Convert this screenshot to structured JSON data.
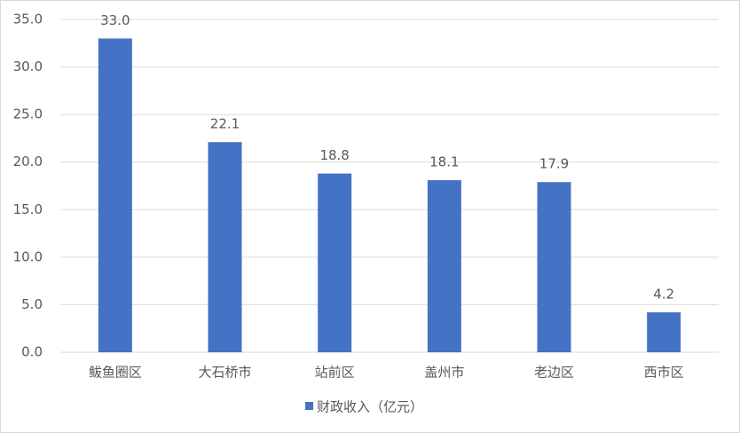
{
  "chart_data": {
    "type": "bar",
    "categories": [
      "鲅鱼圈区",
      "大石桥市",
      "站前区",
      "盖州市",
      "老边区",
      "西市区"
    ],
    "series": [
      {
        "name": "财政收入（亿元）",
        "color": "#4472c4",
        "values": [
          33.0,
          22.1,
          18.8,
          18.1,
          17.9,
          4.2
        ],
        "value_labels": [
          "33.0",
          "22.1",
          "18.8",
          "18.1",
          "17.9",
          "4.2"
        ]
      }
    ],
    "ylim": [
      0,
      35
    ],
    "yticks": [
      {
        "value": 0,
        "label": "0.0"
      },
      {
        "value": 5,
        "label": "5.0"
      },
      {
        "value": 10,
        "label": "10.0"
      },
      {
        "value": 15,
        "label": "15.0"
      },
      {
        "value": 20,
        "label": "20.0"
      },
      {
        "value": 25,
        "label": "25.0"
      },
      {
        "value": 30,
        "label": "30.0"
      },
      {
        "value": 35,
        "label": "35.0"
      }
    ],
    "grid": true,
    "legend": "bottom"
  }
}
